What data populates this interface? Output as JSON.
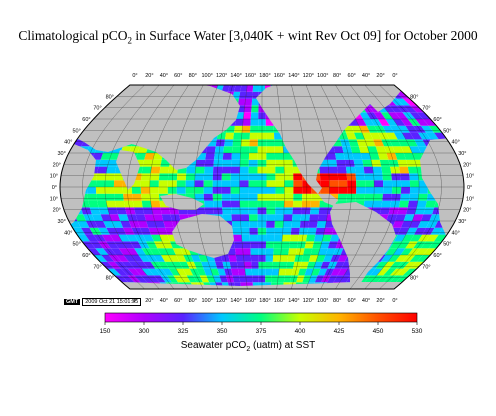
{
  "title": {
    "prefix": "Climatological pCO",
    "sub": "2",
    "suffix": " in Surface Water [3,040K + wint Rev Oct 09] for October 2000"
  },
  "map": {
    "projection": "Robinson",
    "land_color": "#c0c0c0",
    "lon_labels": [
      "0°",
      "20°",
      "40°",
      "60°",
      "80°",
      "100°",
      "120°",
      "140°",
      "160°",
      "180°",
      "160°",
      "140°",
      "120°",
      "100°",
      "80°",
      "60°",
      "40°",
      "20°",
      "0°"
    ],
    "lat_labels_north": [
      "80°",
      "70°",
      "60°",
      "50°",
      "40°",
      "30°",
      "20°",
      "10°",
      "0°"
    ],
    "lat_labels_south": [
      "10°",
      "20°",
      "30°",
      "40°",
      "50°",
      "60°",
      "70°",
      "80°"
    ]
  },
  "stamp": {
    "logo": "GMT",
    "date": "2009 Oct 21 15:01:35"
  },
  "colorbar": {
    "ticks": [
      "150",
      "300",
      "325",
      "350",
      "375",
      "400",
      "425",
      "450",
      "530"
    ],
    "label_prefix": "Seawater  pCO",
    "label_sub": "2",
    "label_suffix": " (uatm) at SST",
    "colors": [
      "#ff00ff",
      "#b000ff",
      "#5a22ff",
      "#00c8ff",
      "#00ff80",
      "#c8ff00",
      "#ffb400",
      "#ff5000",
      "#ff0000"
    ]
  }
}
